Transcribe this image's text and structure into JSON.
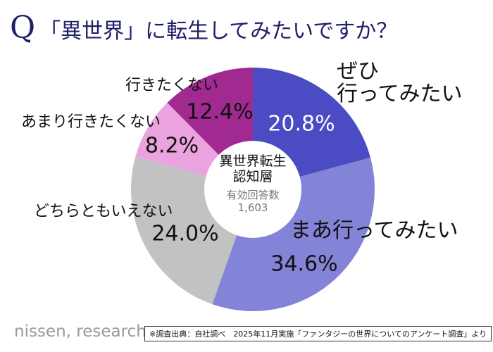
{
  "title": {
    "q": "Q",
    "text": "「異世界」に転生してみたいですか？"
  },
  "center": {
    "line1": "異世界転生",
    "line2": "認知層",
    "count_label": "有効回答数",
    "count": "1,603"
  },
  "footer": {
    "logo": "nissen, research",
    "source": "※調査出典：自社調べ　2025年11月実施「ファンタジーの世界についてのアンケート調査」より"
  },
  "chart_data": {
    "type": "pie",
    "donut": true,
    "start": "top, clockwise",
    "categories": [
      "ぜひ行ってみたい",
      "まあ行ってみたい",
      "どちらともいえない",
      "あまり行きたくない",
      "行きたくない"
    ],
    "label_lines": [
      [
        "ぜひ",
        "行ってみたい"
      ],
      [
        "まあ行ってみたい"
      ],
      [
        "どちらともいえない"
      ],
      [
        "あまり行きたくない"
      ],
      [
        "行きたくない"
      ]
    ],
    "values": [
      20.8,
      34.6,
      24.0,
      8.2,
      12.4
    ],
    "value_labels": [
      "20.8%",
      "34.6%",
      "24.0%",
      "8.2%",
      "12.4%"
    ],
    "colors": [
      "#4b4bc4",
      "#8383d8",
      "#c2c2c2",
      "#eaa3df",
      "#a02a90"
    ],
    "value_label_colors": [
      "#ffffff",
      "#111111",
      "#111111",
      "#111111",
      "#111111"
    ]
  }
}
